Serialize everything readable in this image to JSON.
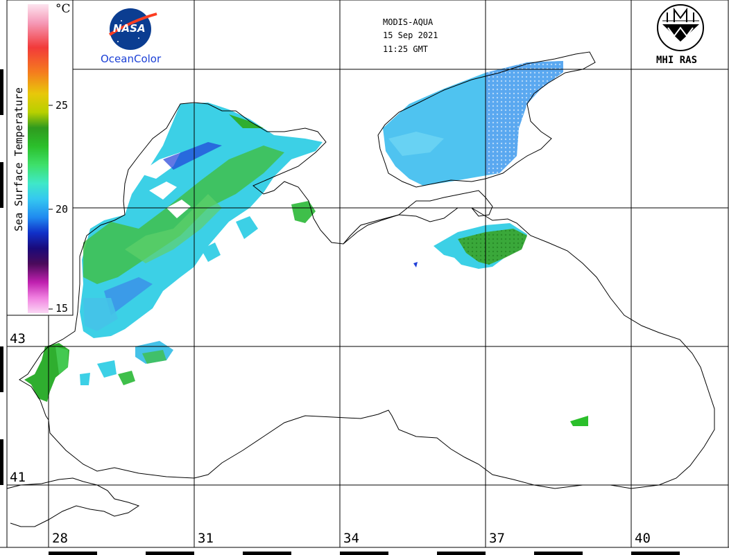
{
  "header": {
    "sensor": "MODIS-AQUA",
    "date": "15 Sep 2021",
    "time": "11:25 GMT"
  },
  "logos": {
    "nasa": "NASA",
    "ocean_color": "OceanColor",
    "mhi": "MHI RAS"
  },
  "colorbar": {
    "title": "Sea Surface Temperature",
    "unit": "°C",
    "ticks": [
      "25",
      "20",
      "15"
    ],
    "colors": [
      "#f5d0e6",
      "#f28bb0",
      "#f23a3a",
      "#f57c1e",
      "#f0c80a",
      "#d6e000",
      "#8ac21d",
      "#2f9a1e",
      "#2bbf2b",
      "#3ee06a",
      "#3fe8c8",
      "#35c8f0",
      "#1f8af0",
      "#1030c8",
      "#1a0a7a",
      "#6a0a6a",
      "#c020b0",
      "#f080e0",
      "#fac8f0"
    ]
  },
  "axes": {
    "longitudes": [
      "28",
      "31",
      "34",
      "37",
      "40"
    ],
    "latitudes": [
      "43",
      "41"
    ]
  },
  "legend_colors": {
    "land_coast": "#000000",
    "sst_warm": "#2fae2f",
    "sst_mid": "#3cd0e6",
    "sst_cool": "#3b8de8",
    "sst_cold": "#1f3fd8"
  }
}
